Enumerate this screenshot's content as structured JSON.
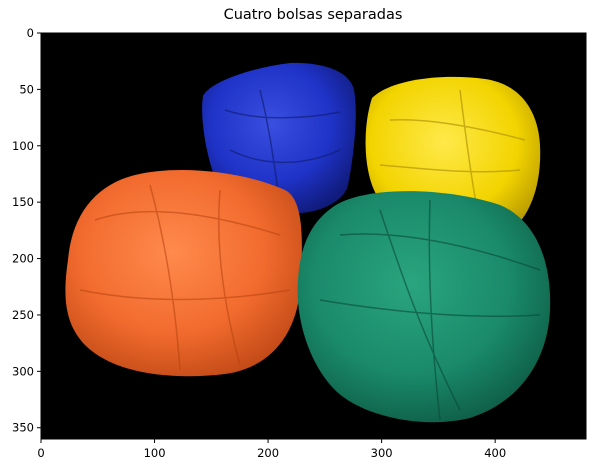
{
  "figure": {
    "title": "Cuatro bolsas separadas"
  },
  "image": {
    "description_labels": [
      "blue-beanbag",
      "yellow-beanbag",
      "orange-beanbag",
      "green-beanbag"
    ],
    "colors": {
      "background": "#000000",
      "blue": "#1f33c8",
      "yellow": "#f2d400",
      "orange": "#f26b2e",
      "green": "#1a8a6a"
    }
  },
  "axes": {
    "x_ticks": [
      "0",
      "100",
      "200",
      "300",
      "400"
    ],
    "y_ticks": [
      "0",
      "50",
      "100",
      "150",
      "200",
      "250",
      "300",
      "350"
    ],
    "x_range": [
      0,
      480
    ],
    "y_range": [
      0,
      360
    ]
  }
}
